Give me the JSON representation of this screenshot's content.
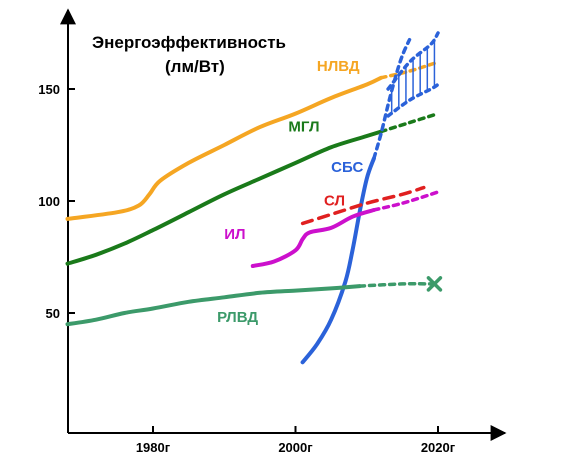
{
  "chart_data": {
    "type": "line",
    "title_line1": "Энергоэффективность",
    "title_line2": "(лм/Вт)",
    "xlabel": "",
    "ylabel": "",
    "xlim": [
      1968,
      2028
    ],
    "ylim": [
      30,
      175
    ],
    "x_ticks": [
      {
        "value": 1980,
        "label": "1980г"
      },
      {
        "value": 2000,
        "label": "2000г"
      },
      {
        "value": 2020,
        "label": "2020г"
      }
    ],
    "y_ticks": [
      {
        "value": 50,
        "label": "50"
      },
      {
        "value": 100,
        "label": "100"
      },
      {
        "value": 150,
        "label": "150"
      }
    ],
    "grid": false,
    "series": [
      {
        "name": "НЛВД",
        "color": "#f5a623",
        "solid": [
          [
            1968,
            92
          ],
          [
            1975,
            95
          ],
          [
            1978,
            98
          ],
          [
            1979.5,
            103
          ],
          [
            1981,
            109
          ],
          [
            1985,
            117
          ],
          [
            1990,
            125
          ],
          [
            1995,
            133
          ],
          [
            2000,
            139
          ],
          [
            2005,
            146
          ],
          [
            2010,
            152
          ],
          [
            2012,
            155
          ]
        ],
        "dashed": [
          [
            2012,
            155
          ],
          [
            2016,
            158
          ],
          [
            2020,
            162
          ]
        ],
        "label_pos": [
          2003,
          158
        ]
      },
      {
        "name": "МГЛ",
        "color": "#1a7a1a",
        "solid": [
          [
            1968,
            72
          ],
          [
            1972,
            76
          ],
          [
            1976,
            81
          ],
          [
            1980,
            87
          ],
          [
            1985,
            95
          ],
          [
            1990,
            103
          ],
          [
            1995,
            110
          ],
          [
            2000,
            117
          ],
          [
            2005,
            124
          ],
          [
            2010,
            129
          ],
          [
            2012,
            131
          ]
        ],
        "dashed": [
          [
            2012,
            131
          ],
          [
            2016,
            135
          ],
          [
            2020,
            139
          ]
        ],
        "label_pos": [
          1999,
          131
        ]
      },
      {
        "name": "СБС",
        "color": "#2b62d9",
        "solid": [
          [
            2001,
            28
          ],
          [
            2003,
            36
          ],
          [
            2005,
            47
          ],
          [
            2007,
            64
          ],
          [
            2008,
            78
          ],
          [
            2009,
            95
          ],
          [
            2010,
            110
          ],
          [
            2011,
            119
          ]
        ],
        "dashed": [
          [
            2011,
            119
          ],
          [
            2012,
            130
          ],
          [
            2013,
            143
          ],
          [
            2014,
            155
          ],
          [
            2015,
            165
          ],
          [
            2016,
            172
          ]
        ],
        "band_upper": [
          [
            2013,
            150
          ],
          [
            2016,
            162
          ],
          [
            2019,
            170
          ],
          [
            2020,
            175
          ]
        ],
        "band_lower": [
          [
            2013,
            138
          ],
          [
            2016,
            145
          ],
          [
            2019,
            150
          ],
          [
            2020,
            152
          ]
        ],
        "label_pos": [
          2005,
          113
        ]
      },
      {
        "name": "СЛ",
        "color": "#e02020",
        "solid": [],
        "dashed": [
          [
            2001,
            90
          ],
          [
            2005,
            94
          ],
          [
            2010,
            99
          ],
          [
            2015,
            103
          ],
          [
            2018,
            106
          ]
        ],
        "label_pos": [
          2004,
          98
        ]
      },
      {
        "name": "ИЛ",
        "color": "#cc10cc",
        "solid": [
          [
            1994,
            71
          ],
          [
            1997,
            73
          ],
          [
            2000,
            78
          ],
          [
            2001,
            83
          ],
          [
            2002,
            86
          ],
          [
            2005,
            88
          ],
          [
            2008,
            93
          ],
          [
            2011,
            96
          ]
        ],
        "dashed": [
          [
            2011,
            96
          ],
          [
            2015,
            99
          ],
          [
            2020,
            104
          ]
        ],
        "label_pos": [
          1990,
          83
        ]
      },
      {
        "name": "РЛВД",
        "color": "#3c9a6a",
        "solid": [
          [
            1968,
            45
          ],
          [
            1972,
            47
          ],
          [
            1976,
            50
          ],
          [
            1980,
            52
          ],
          [
            1985,
            55
          ],
          [
            1990,
            57
          ],
          [
            1995,
            59
          ],
          [
            2000,
            60
          ],
          [
            2005,
            61
          ],
          [
            2009,
            62
          ]
        ],
        "dashed": [
          [
            2009,
            62
          ],
          [
            2015,
            63
          ],
          [
            2019,
            63
          ]
        ],
        "end_marker": "x",
        "end_marker_pos": [
          2019.5,
          63
        ],
        "label_pos": [
          1989,
          46
        ]
      }
    ]
  }
}
